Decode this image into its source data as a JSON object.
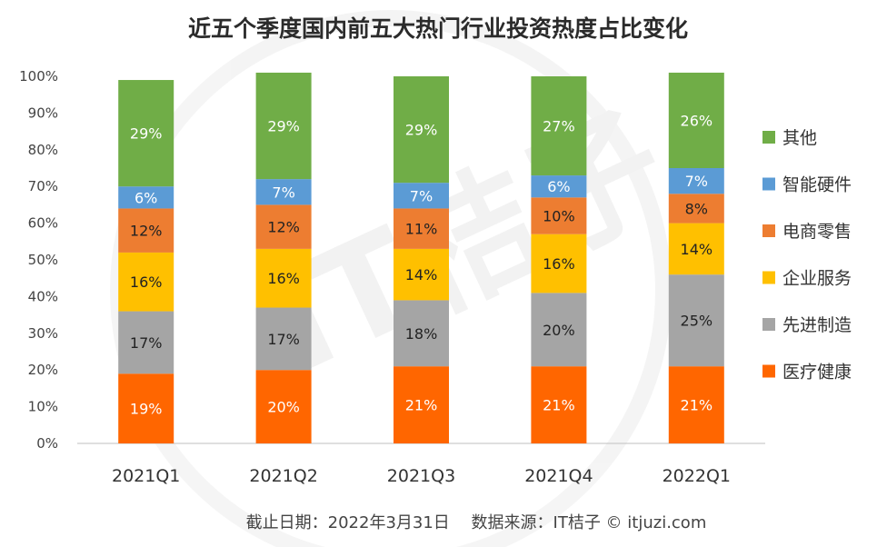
{
  "chart_data": {
    "type": "bar",
    "stacked": true,
    "title": "近五个季度国内前五大热门行业投资热度占比变化",
    "categories": [
      "2021Q1",
      "2021Q2",
      "2021Q3",
      "2021Q4",
      "2022Q1"
    ],
    "ylim": [
      0,
      100
    ],
    "yticks": [
      "0%",
      "10%",
      "20%",
      "30%",
      "40%",
      "50%",
      "60%",
      "70%",
      "80%",
      "90%",
      "100%"
    ],
    "legend_position": "right",
    "series": [
      {
        "name": "医疗健康",
        "color": "#ff6600",
        "label_color": "#ffffff",
        "values": [
          19,
          20,
          21,
          21,
          21
        ],
        "labels": [
          "19%",
          "20%",
          "21%",
          "21%",
          "21%"
        ]
      },
      {
        "name": "先进制造",
        "color": "#a5a5a5",
        "label_color": "#222222",
        "values": [
          17,
          17,
          18,
          20,
          25
        ],
        "labels": [
          "17%",
          "17%",
          "18%",
          "20%",
          "25%"
        ]
      },
      {
        "name": "企业服务",
        "color": "#ffc000",
        "label_color": "#222222",
        "values": [
          16,
          16,
          14,
          16,
          14
        ],
        "labels": [
          "16%",
          "16%",
          "14%",
          "16%",
          "14%"
        ]
      },
      {
        "name": "电商零售",
        "color": "#ed7d31",
        "label_color": "#222222",
        "values": [
          12,
          12,
          11,
          10,
          8
        ],
        "labels": [
          "12%",
          "12%",
          "11%",
          "10%",
          "8%"
        ]
      },
      {
        "name": "智能硬件",
        "color": "#5b9bd5",
        "label_color": "#ffffff",
        "values": [
          6,
          7,
          7,
          6,
          7
        ],
        "labels": [
          "6%",
          "7%",
          "7%",
          "6%",
          "7%"
        ]
      },
      {
        "name": "其他",
        "color": "#70ad47",
        "label_color": "#ffffff",
        "values": [
          29,
          29,
          29,
          27,
          26
        ],
        "labels": [
          "29%",
          "29%",
          "29%",
          "27%",
          "26%"
        ]
      }
    ],
    "legend_order": [
      "其他",
      "智能硬件",
      "电商零售",
      "企业服务",
      "先进制造",
      "医疗健康"
    ],
    "source_note": "截止日期：2022年3月31日　 数据来源：IT桔子 © itjuzi.com",
    "watermark": "IT桔子 ITJUZI.COM"
  }
}
